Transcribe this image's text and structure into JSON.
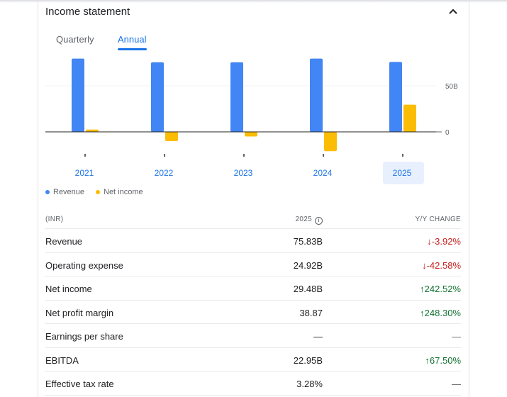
{
  "header": {
    "title": "Income statement"
  },
  "tabs": [
    {
      "label": "Quarterly",
      "active": false
    },
    {
      "label": "Annual",
      "active": true
    }
  ],
  "chart_data": {
    "type": "bar",
    "categories": [
      "2021",
      "2022",
      "2023",
      "2024",
      "2025"
    ],
    "selected_category": "2025",
    "series": [
      {
        "name": "Revenue",
        "color": "#4285f4",
        "values": [
          79.5,
          75.5,
          75.5,
          79.5,
          75.83
        ]
      },
      {
        "name": "Net income",
        "color": "#fbbc04",
        "values": [
          2.5,
          -10,
          -5,
          -21,
          29.48
        ]
      }
    ],
    "y_ticks": [
      {
        "value": 0,
        "label": "0"
      },
      {
        "value": 50,
        "label": "50B"
      }
    ],
    "ylim": [
      -22,
      80
    ],
    "unit": "B"
  },
  "legend": {
    "revenue": "Revenue",
    "net_income": "Net income"
  },
  "table": {
    "headers": {
      "label": "(INR)",
      "year": "2025",
      "change": "Y/Y CHANGE"
    },
    "rows": [
      {
        "label": "Revenue",
        "value": "75.83B",
        "change": "-3.92%",
        "direction": "down"
      },
      {
        "label": "Operating expense",
        "value": "24.92B",
        "change": "-42.58%",
        "direction": "down"
      },
      {
        "label": "Net income",
        "value": "29.48B",
        "change": "242.52%",
        "direction": "up"
      },
      {
        "label": "Net profit margin",
        "value": "38.87",
        "change": "248.30%",
        "direction": "up"
      },
      {
        "label": "Earnings per share",
        "value": "—",
        "change": "—",
        "direction": "none"
      },
      {
        "label": "EBITDA",
        "value": "22.95B",
        "change": "67.50%",
        "direction": "up"
      },
      {
        "label": "Effective tax rate",
        "value": "3.28%",
        "change": "—",
        "direction": "none"
      }
    ]
  }
}
